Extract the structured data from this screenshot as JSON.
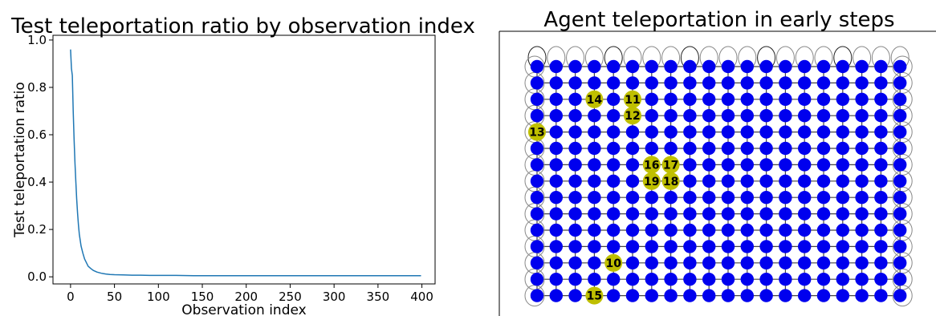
{
  "chart_data": [
    {
      "type": "line",
      "title": "Test teleportation ratio by observation index",
      "xlabel": "Observation index",
      "ylabel": "Test teleportation ratio",
      "xlim": [
        -20,
        415
      ],
      "ylim": [
        -0.03,
        1.02
      ],
      "xticks": [
        "0",
        "50",
        "100",
        "150",
        "200",
        "250",
        "300",
        "350",
        "400"
      ],
      "yticks": [
        "0.0",
        "0.2",
        "0.4",
        "0.6",
        "0.8",
        "1.0"
      ],
      "grid": false,
      "line_color": "#1f77b4",
      "series": [
        {
          "x": [
            0,
            1,
            2,
            3,
            4,
            5,
            6,
            7,
            8,
            9,
            10,
            12,
            14,
            16,
            18,
            20,
            23,
            26,
            30,
            35,
            40,
            45,
            50,
            60,
            70,
            80,
            90,
            100,
            120,
            140,
            160,
            180,
            200,
            220,
            240,
            260,
            280,
            300,
            320,
            340,
            360,
            380,
            399
          ],
          "y": [
            0.96,
            0.88,
            0.85,
            0.7,
            0.58,
            0.48,
            0.4,
            0.33,
            0.27,
            0.22,
            0.18,
            0.13,
            0.1,
            0.075,
            0.06,
            0.045,
            0.035,
            0.027,
            0.02,
            0.015,
            0.012,
            0.01,
            0.009,
            0.008,
            0.007,
            0.007,
            0.006,
            0.006,
            0.006,
            0.005,
            0.005,
            0.005,
            0.005,
            0.005,
            0.005,
            0.005,
            0.005,
            0.005,
            0.005,
            0.005,
            0.005,
            0.005,
            0.005
          ]
        }
      ]
    },
    {
      "type": "graph",
      "title": "Agent teleportation in early steps",
      "grid_cols": 20,
      "grid_rows": 15,
      "node_color": "#0000ee",
      "highlight_color": "#bfbf00",
      "highlighted_nodes": [
        {
          "label": "10",
          "col": 4,
          "row": 12
        },
        {
          "label": "11",
          "col": 5,
          "row": 2
        },
        {
          "label": "12",
          "col": 5,
          "row": 3
        },
        {
          "label": "13",
          "col": 0,
          "row": 4
        },
        {
          "label": "14",
          "col": 3,
          "row": 2
        },
        {
          "label": "15",
          "col": 3,
          "row": 14
        },
        {
          "label": "16",
          "col": 6,
          "row": 6
        },
        {
          "label": "17",
          "col": 7,
          "row": 6
        },
        {
          "label": "18",
          "col": 7,
          "row": 7
        },
        {
          "label": "19",
          "col": 6,
          "row": 7
        }
      ]
    }
  ]
}
